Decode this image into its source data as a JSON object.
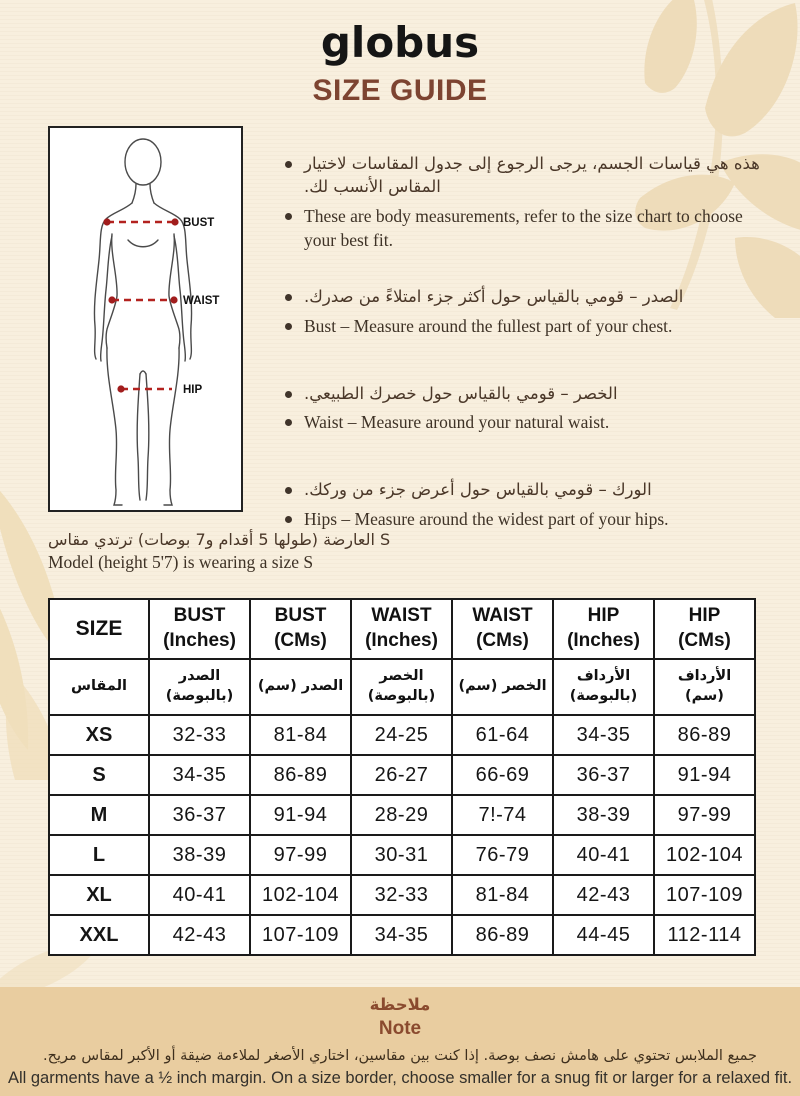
{
  "header": {
    "logo": "globus",
    "title": "SIZE GUIDE"
  },
  "diagram": {
    "bust_label": "BUST",
    "waist_label": "WAIST",
    "hip_label": "HIP"
  },
  "instructions": [
    {
      "ar": "هذه هي قياسات الجسم، يرجى الرجوع إلى جدول المقاسات لاختيار المقاس الأنسب لك.",
      "en": "These are body measurements, refer to the size chart to choose your best fit."
    },
    {
      "ar": "الصدر – قومي بالقياس حول أكثر جزء امتلاءً من صدرك.",
      "en": "Bust – Measure around the fullest part of your chest."
    },
    {
      "ar": "الخصر – قومي بالقياس حول خصرك الطبيعي.",
      "en": "Waist – Measure around your natural waist."
    },
    {
      "ar": "الورك – قومي بالقياس حول أعرض جزء من وركك.",
      "en": "Hips – Measure around the widest part of your hips."
    }
  ],
  "model_info": {
    "ar": "العارضة (طولها 5 أقدام و7 بوصات) ترتدي مقاس S",
    "en": "Model (height 5'7) is wearing a size S"
  },
  "size_table": {
    "headers_en": [
      "SIZE",
      "BUST\n(Inches)",
      "BUST\n(CMs)",
      "WAIST\n(Inches)",
      "WAIST\n(CMs)",
      "HIP\n(Inches)",
      "HIP\n(CMs)"
    ],
    "headers_ar": [
      "المقاس",
      "الصدر\n(بالبوصة)",
      "الصدر (سم)",
      "الخصر\n(بالبوصة)",
      "الخصر (سم)",
      "الأرداف\n(بالبوصة)",
      "الأرداف (سم)"
    ],
    "rows": [
      [
        "XS",
        "32-33",
        "81-84",
        "24-25",
        "61-64",
        "34-35",
        "86-89"
      ],
      [
        "S",
        "34-35",
        "86-89",
        "26-27",
        "66-69",
        "36-37",
        "91-94"
      ],
      [
        "M",
        "36-37",
        "91-94",
        "28-29",
        "7!-74",
        "38-39",
        "97-99"
      ],
      [
        "L",
        "38-39",
        "97-99",
        "30-31",
        "76-79",
        "40-41",
        "102-104"
      ],
      [
        "XL",
        "40-41",
        "102-104",
        "32-33",
        "81-84",
        "42-43",
        "107-109"
      ],
      [
        "XXL",
        "42-43",
        "107-109",
        "34-35",
        "86-89",
        "44-45",
        "112-114"
      ]
    ]
  },
  "note": {
    "title_ar": "ملاحظة",
    "title_en": "Note",
    "body_ar": "جميع الملابس تحتوي على هامش نصف بوصة. إذا كنت بين مقاسين، اختاري الأصغر لملاءمة ضيقة أو الأكبر لمقاس مريح.",
    "body_en": "All garments have a ½ inch margin. On a size border, choose smaller for a snug fit or larger for a relaxed fit."
  },
  "colors": {
    "background": "#f8efde",
    "title_brown": "#7d4431",
    "note_background": "#e9cda0",
    "note_heading": "#8a4a2e",
    "measure_red": "#b3221f",
    "leaf": "#eedcba",
    "text_dark": "#43362a"
  }
}
